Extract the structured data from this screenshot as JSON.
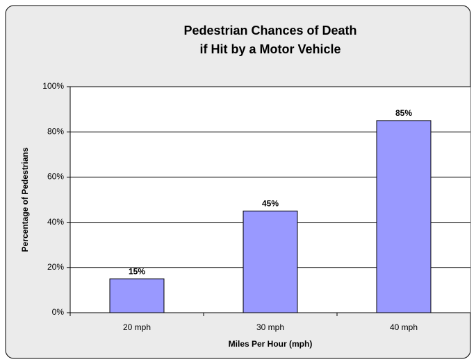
{
  "chart_data": {
    "type": "bar",
    "title": [
      "Pedestrian Chances of Death",
      "if Hit by a Motor Vehicle"
    ],
    "categories": [
      "20 mph",
      "30 mph",
      "40 mph"
    ],
    "values": [
      15,
      45,
      85
    ],
    "value_labels": [
      "15%",
      "45%",
      "85%"
    ],
    "color": "#9999ff",
    "ylim": [
      0,
      100
    ],
    "yticks": [
      {
        "value": 0,
        "label": "0%"
      },
      {
        "value": 20,
        "label": "20%"
      },
      {
        "value": 40,
        "label": "40%"
      },
      {
        "value": 60,
        "label": "60%"
      },
      {
        "value": 80,
        "label": "80%"
      },
      {
        "value": 100,
        "label": "100%"
      }
    ],
    "grid": true,
    "xlabel": "Miles Per Hour (mph)",
    "ylabel": "Percentage of Pedestrians"
  }
}
